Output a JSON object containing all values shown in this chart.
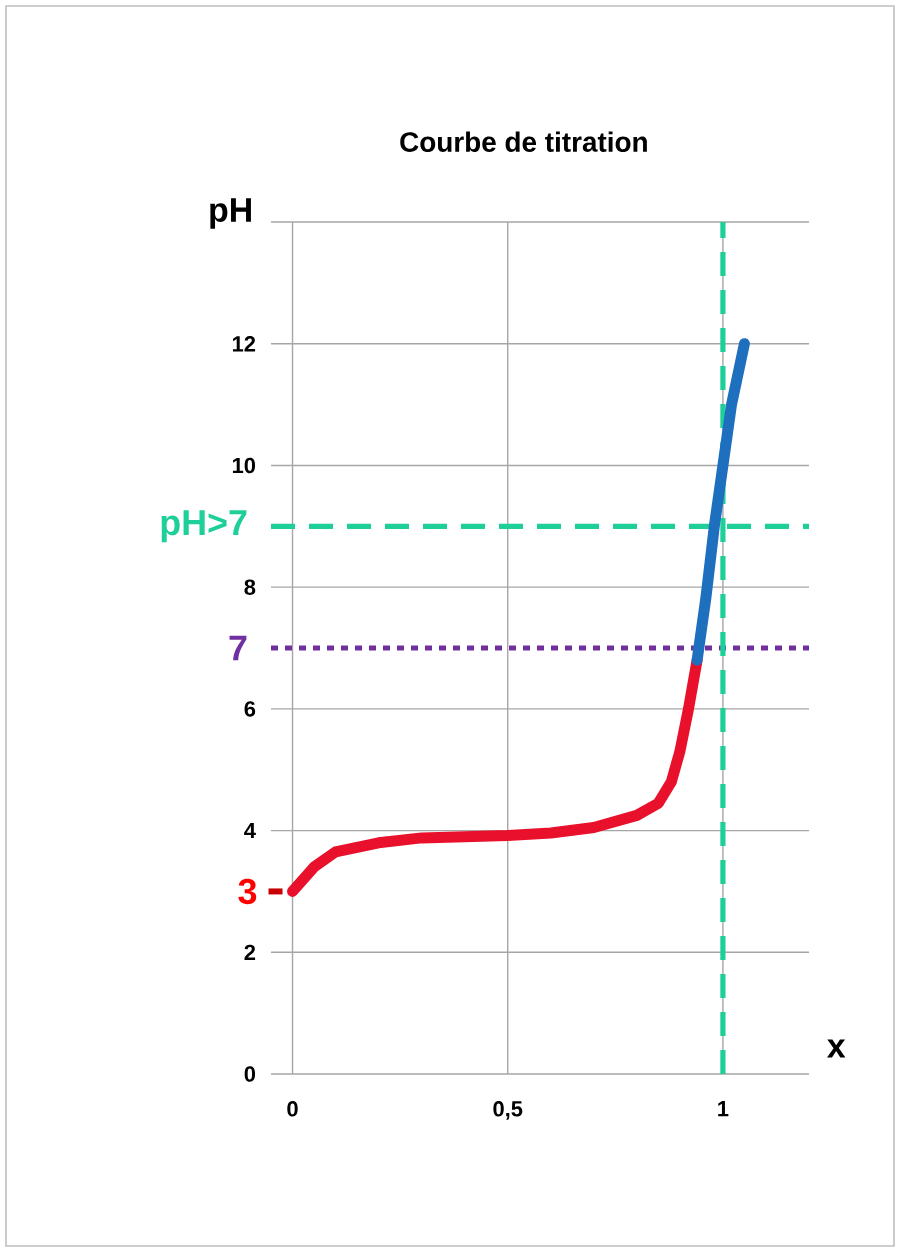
{
  "chart_data": {
    "type": "line",
    "title": "Courbe de titration",
    "xlabel": "x",
    "ylabel": "pH",
    "x": [
      0,
      0.05,
      0.1,
      0.2,
      0.3,
      0.4,
      0.5,
      0.6,
      0.7,
      0.8,
      0.85,
      0.88,
      0.9,
      0.92,
      0.94
    ],
    "series": [
      {
        "color": "#e8102a",
        "values": [
          3.0,
          3.4,
          3.65,
          3.8,
          3.88,
          3.9,
          3.92,
          3.96,
          4.05,
          4.25,
          4.45,
          4.8,
          5.3,
          6.0,
          6.8
        ]
      },
      {
        "color": "#1f6fbf",
        "x": [
          0.94,
          0.96,
          0.98,
          1.0,
          1.02,
          1.05
        ],
        "values": [
          6.8,
          7.8,
          9.0,
          10.0,
          11.0,
          12.0
        ]
      }
    ],
    "xlim": [
      -0.05,
      1.2
    ],
    "ylim": [
      0,
      14
    ],
    "xticks": [
      0,
      {
        "value": 0.5,
        "label": "0,5"
      },
      1
    ],
    "yticks": [
      0,
      2,
      4,
      6,
      8,
      10,
      12,
      {
        "value": 14,
        "label": null
      }
    ],
    "grid": true,
    "ref_lines": [
      {
        "axis": "y",
        "value": 7,
        "label": "7",
        "color": "#7030a0",
        "line_style": "dotted"
      },
      {
        "axis": "y",
        "value": 9,
        "label": "pH>7",
        "color": "#1fcf9a",
        "line_style": "dashed"
      },
      {
        "axis": "x",
        "value": 1,
        "color": "#1fcf9a",
        "line_style": "dashed"
      }
    ],
    "annotations": [
      {
        "text": "3",
        "x": 0,
        "y": 3
      }
    ]
  }
}
